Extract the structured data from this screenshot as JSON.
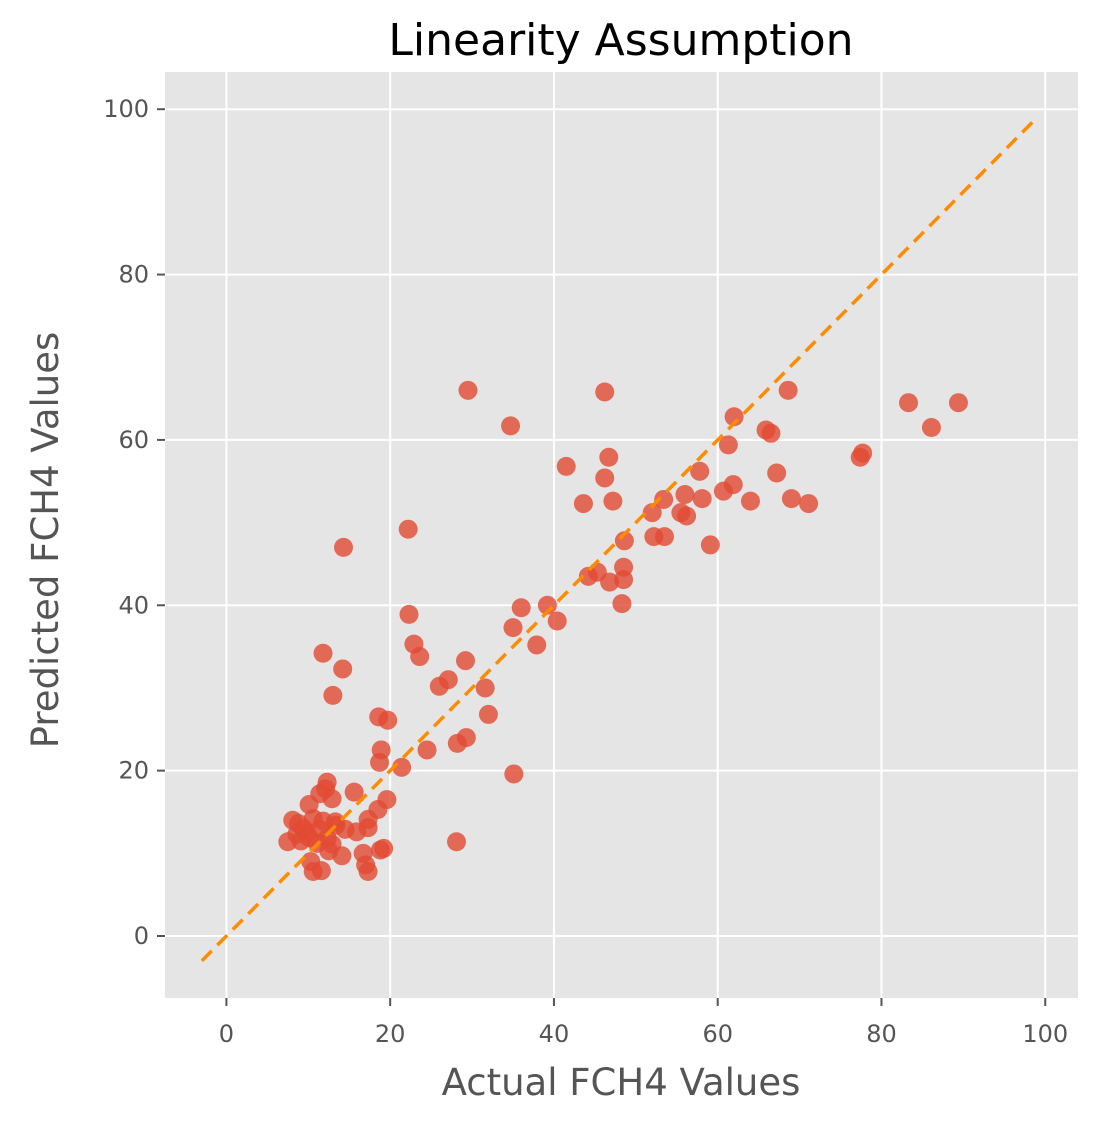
{
  "chart_data": {
    "type": "scatter",
    "title": "Linearity Assumption",
    "xlabel": "Actual FCH4 Values",
    "ylabel": "Predicted FCH4 Values",
    "xlim": [
      -7.5,
      104
    ],
    "ylim": [
      -7.5,
      104.5
    ],
    "xticks": [
      0,
      20,
      40,
      60,
      80,
      100
    ],
    "yticks": [
      0,
      20,
      40,
      60,
      80,
      100
    ],
    "grid": true,
    "point_color": "#e24a33",
    "reference_line": {
      "x": [
        -3,
        99
      ],
      "y": [
        -3,
        99
      ],
      "color": "#ff8c00",
      "style": "dashed"
    },
    "series": [
      {
        "points": [
          [
            29.5,
            66
          ],
          [
            46.2,
            65.8
          ],
          [
            68.6,
            66
          ],
          [
            34.7,
            61.7
          ],
          [
            83.3,
            64.5
          ],
          [
            89.4,
            64.5
          ],
          [
            86.1,
            61.5
          ],
          [
            62,
            62.8
          ],
          [
            61.3,
            59.4
          ],
          [
            65.9,
            61.2
          ],
          [
            66.5,
            60.8
          ],
          [
            77.4,
            57.9
          ],
          [
            77.7,
            58.4
          ],
          [
            41.5,
            56.8
          ],
          [
            46.7,
            57.9
          ],
          [
            46.2,
            55.4
          ],
          [
            57.8,
            56.2
          ],
          [
            67.2,
            56
          ],
          [
            43.6,
            52.3
          ],
          [
            47.2,
            52.6
          ],
          [
            53.4,
            52.8
          ],
          [
            56,
            53.4
          ],
          [
            58.1,
            52.9
          ],
          [
            60.7,
            53.8
          ],
          [
            61.9,
            54.6
          ],
          [
            64,
            52.6
          ],
          [
            69,
            52.9
          ],
          [
            71.1,
            52.3
          ],
          [
            52,
            51.2
          ],
          [
            55.5,
            51.2
          ],
          [
            56.2,
            50.8
          ],
          [
            52.2,
            48.3
          ],
          [
            53.5,
            48.3
          ],
          [
            59.1,
            47.3
          ],
          [
            48.6,
            47.8
          ],
          [
            22.2,
            49.2
          ],
          [
            14.3,
            47
          ],
          [
            48.5,
            44.6
          ],
          [
            48.5,
            43.1
          ],
          [
            45.3,
            44
          ],
          [
            46.8,
            42.8
          ],
          [
            44.2,
            43.5
          ],
          [
            48.3,
            40.2
          ],
          [
            39.2,
            40
          ],
          [
            36,
            39.7
          ],
          [
            40.4,
            38.1
          ],
          [
            35,
            37.3
          ],
          [
            37.9,
            35.2
          ],
          [
            22.3,
            38.9
          ],
          [
            22.9,
            35.3
          ],
          [
            23.6,
            33.8
          ],
          [
            29.2,
            33.3
          ],
          [
            26,
            30.2
          ],
          [
            27.1,
            31
          ],
          [
            31.6,
            30
          ],
          [
            11.8,
            34.2
          ],
          [
            14.2,
            32.3
          ],
          [
            13,
            29.1
          ],
          [
            32,
            26.8
          ],
          [
            18.6,
            26.5
          ],
          [
            19.7,
            26.1
          ],
          [
            29.3,
            24
          ],
          [
            28.2,
            23.3
          ],
          [
            24.5,
            22.5
          ],
          [
            18.9,
            22.5
          ],
          [
            18.7,
            21
          ],
          [
            21.4,
            20.4
          ],
          [
            35.1,
            19.6
          ],
          [
            12.3,
            18.6
          ],
          [
            12.1,
            17.8
          ],
          [
            15.6,
            17.4
          ],
          [
            11.4,
            17.2
          ],
          [
            19.6,
            16.5
          ],
          [
            12.9,
            16.6
          ],
          [
            10.1,
            15.9
          ],
          [
            18.5,
            15.3
          ],
          [
            8.1,
            14
          ],
          [
            10.6,
            14.2
          ],
          [
            13.3,
            13.8
          ],
          [
            17.3,
            14.1
          ],
          [
            9.4,
            13
          ],
          [
            11.4,
            12.9
          ],
          [
            14.5,
            12.9
          ],
          [
            15.9,
            12.6
          ],
          [
            17.3,
            13.1
          ],
          [
            8.6,
            12.3
          ],
          [
            10.1,
            11.9
          ],
          [
            12.3,
            11.8
          ],
          [
            7.5,
            11.4
          ],
          [
            9.1,
            11.5
          ],
          [
            11.1,
            11.2
          ],
          [
            28.1,
            11.4
          ],
          [
            18.8,
            10.4
          ],
          [
            19.2,
            10.6
          ],
          [
            12.5,
            10.3
          ],
          [
            14.1,
            9.7
          ],
          [
            16.7,
            10
          ],
          [
            10.3,
            9
          ],
          [
            17,
            8.6
          ],
          [
            10.6,
            7.8
          ],
          [
            11.6,
            7.9
          ],
          [
            17.3,
            7.8
          ],
          [
            12.9,
            11.1
          ],
          [
            9.8,
            12.5
          ],
          [
            13.4,
            13.4
          ],
          [
            8.8,
            13.6
          ],
          [
            11.8,
            13.9
          ]
        ]
      }
    ]
  }
}
